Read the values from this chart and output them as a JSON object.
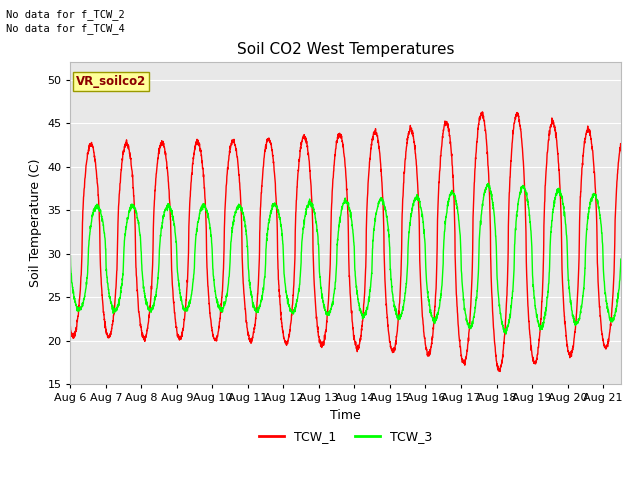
{
  "title": "Soil CO2 West Temperatures",
  "xlabel": "Time",
  "ylabel": "Soil Temperature (C)",
  "ylim": [
    15,
    52
  ],
  "yticks": [
    15,
    20,
    25,
    30,
    35,
    40,
    45,
    50
  ],
  "x_tick_labels": [
    "Aug 6",
    "Aug 7",
    "Aug 8",
    "Aug 9",
    "Aug 10",
    "Aug 11",
    "Aug 12",
    "Aug 13",
    "Aug 14",
    "Aug 15",
    "Aug 16",
    "Aug 17",
    "Aug 18",
    "Aug 19",
    "Aug 20",
    "Aug 21"
  ],
  "no_data_text": [
    "No data for f_TCW_2",
    "No data for f_TCW_4"
  ],
  "vr_label": "VR_soilco2",
  "bg_color": "#e8e8e8",
  "line1_color": "red",
  "line2_color": "lime",
  "legend_labels": [
    "TCW_1",
    "TCW_3"
  ],
  "title_fontsize": 11,
  "axis_label_fontsize": 9,
  "tick_fontsize": 8
}
